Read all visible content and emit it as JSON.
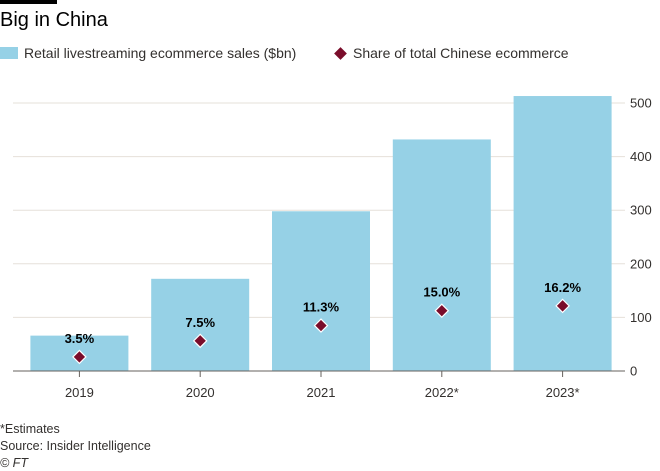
{
  "title": "Big in China",
  "legend": {
    "bars_label": "Retail livestreaming ecommerce sales ($bn)",
    "markers_label": "Share of total Chinese ecommerce"
  },
  "colors": {
    "bar": "#96d1e6",
    "marker": "#7a0d2b",
    "grid": "#e6e0da",
    "axis": "#66605c",
    "text": "#33302e"
  },
  "chart_data": {
    "type": "bar",
    "categories": [
      "2019",
      "2020",
      "2021",
      "2022*",
      "2023*"
    ],
    "series": [
      {
        "name": "Retail livestreaming ecommerce sales ($bn)",
        "type": "bar",
        "values": [
          66,
          172,
          298,
          432,
          513
        ]
      },
      {
        "name": "Share of total Chinese ecommerce",
        "type": "scatter",
        "marker": "diamond",
        "values": [
          3.5,
          7.5,
          11.3,
          15.0,
          16.2
        ],
        "labels": [
          "3.5%",
          "7.5%",
          "11.3%",
          "15.0%",
          "16.2%"
        ]
      }
    ],
    "y_axis": {
      "position": "right",
      "ylim": [
        0,
        500
      ],
      "ticks": [
        0,
        100,
        200,
        300,
        400,
        500
      ]
    },
    "grid": true,
    "legend_position": "top-left"
  },
  "footer": {
    "note": "*Estimates",
    "source": "Source: Insider Intelligence",
    "credit": "© FT"
  }
}
